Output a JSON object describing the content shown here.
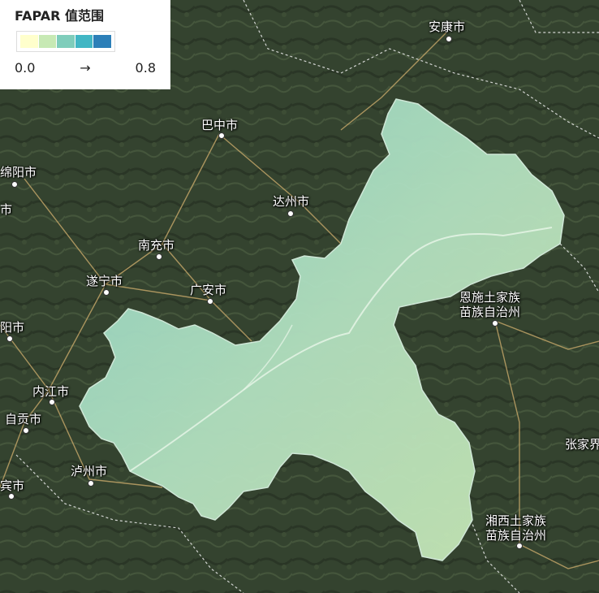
{
  "legend": {
    "title": "FAPAR 值范围",
    "min_label": "0.0",
    "arrow_label": "→",
    "max_label": "0.8",
    "colors": [
      "#ffffcc",
      "#c7e9b4",
      "#7fcdbb",
      "#41b6c4",
      "#2c7fb8"
    ]
  },
  "cities": [
    {
      "id": "ankang",
      "label": "安康市"
    },
    {
      "id": "bazhong",
      "label": "巴中市"
    },
    {
      "id": "mianyang",
      "label": "绵阳市"
    },
    {
      "id": "dazhou",
      "label": "达州市"
    },
    {
      "id": "nanchong",
      "label": "南充市"
    },
    {
      "id": "suining",
      "label": "遂宁市"
    },
    {
      "id": "guangan",
      "label": "广安市"
    },
    {
      "id": "ziyang",
      "label": "阳市"
    },
    {
      "id": "neijiang",
      "label": "内江市"
    },
    {
      "id": "zigong",
      "label": "自贡市"
    },
    {
      "id": "luzhou",
      "label": "泸州市"
    },
    {
      "id": "yibin",
      "label": "宾市"
    },
    {
      "id": "enshi",
      "label": "恩施土家族\n苗族自治州"
    },
    {
      "id": "xiangxi",
      "label": "湘西土家族\n苗族自治州"
    },
    {
      "id": "zhangjiajie",
      "label": "张家界"
    },
    {
      "id": "chengdu_edge",
      "label": "市"
    }
  ],
  "colors": {
    "satellite_base": "#34432f",
    "fapar_region": "#a9dcc0",
    "boundary": "#e8e8e8",
    "road": "#c8a96a"
  }
}
